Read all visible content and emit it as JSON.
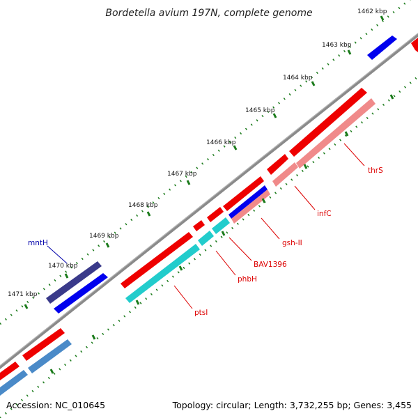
{
  "title": "Bordetella avium 197N, complete genome",
  "footer": {
    "accession": "Accession: NC_010645",
    "summary": "Topology: circular; Length: 3,732,255 bp; Genes: 3,455"
  },
  "ticks": [
    "1462 kbp",
    "1463 kbp",
    "1464 kbp",
    "1465 kbp",
    "1466 kbp",
    "1467 kbp",
    "1468 kbp",
    "1469 kbp",
    "1470 kbp",
    "1471 kbp"
  ],
  "gene_labels": [
    {
      "name": "thrS",
      "color": "#dd0000"
    },
    {
      "name": "infC",
      "color": "#dd0000"
    },
    {
      "name": "gsh-II",
      "color": "#dd0000"
    },
    {
      "name": "BAV1396",
      "color": "#dd0000"
    },
    {
      "name": "phbH",
      "color": "#dd0000"
    },
    {
      "name": "ptsI",
      "color": "#dd0000"
    },
    {
      "name": "mntH",
      "color": "#0000aa"
    }
  ],
  "colors": {
    "backbone": "#8a8a8a",
    "tick_marks": "#1a7a1a",
    "forward_cds": "#0000ee",
    "forward_feature": "#3a3a8a",
    "reverse_cds": "#ee0000",
    "reverse_feature": "#f08a8a",
    "reverse_feature_alt": "#22cccc",
    "reverse_feature_alt2": "#4a8ac8",
    "label_line_red": "#dd0000",
    "label_line_blue": "#0000aa"
  }
}
